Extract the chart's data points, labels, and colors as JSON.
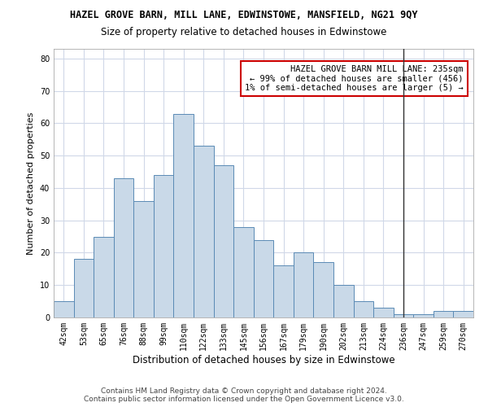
{
  "title": "HAZEL GROVE BARN, MILL LANE, EDWINSTOWE, MANSFIELD, NG21 9QY",
  "subtitle": "Size of property relative to detached houses in Edwinstowe",
  "xlabel": "Distribution of detached houses by size in Edwinstowe",
  "ylabel": "Number of detached properties",
  "bar_labels": [
    "42sqm",
    "53sqm",
    "65sqm",
    "76sqm",
    "88sqm",
    "99sqm",
    "110sqm",
    "122sqm",
    "133sqm",
    "145sqm",
    "156sqm",
    "167sqm",
    "179sqm",
    "190sqm",
    "202sqm",
    "213sqm",
    "224sqm",
    "236sqm",
    "247sqm",
    "259sqm",
    "270sqm"
  ],
  "bar_heights": [
    5,
    18,
    25,
    43,
    36,
    44,
    63,
    53,
    47,
    28,
    24,
    16,
    20,
    17,
    10,
    5,
    3,
    1,
    1,
    2,
    2
  ],
  "bar_color": "#c9d9e8",
  "bar_edge_color": "#5a8ab5",
  "vline_x_index": 17,
  "vline_color": "#333333",
  "annotation_text": "HAZEL GROVE BARN MILL LANE: 235sqm\n← 99% of detached houses are smaller (456)\n1% of semi-detached houses are larger (5) →",
  "annotation_box_color": "#ffffff",
  "annotation_border_color": "#cc0000",
  "ylim": [
    0,
    83
  ],
  "yticks": [
    0,
    10,
    20,
    30,
    40,
    50,
    60,
    70,
    80
  ],
  "grid_color": "#d0d8e8",
  "background_color": "#ffffff",
  "footer_line1": "Contains HM Land Registry data © Crown copyright and database right 2024.",
  "footer_line2": "Contains public sector information licensed under the Open Government Licence v3.0.",
  "title_fontsize": 8.5,
  "subtitle_fontsize": 8.5,
  "xlabel_fontsize": 8.5,
  "ylabel_fontsize": 8,
  "tick_fontsize": 7,
  "annotation_fontsize": 7.5,
  "footer_fontsize": 6.5
}
